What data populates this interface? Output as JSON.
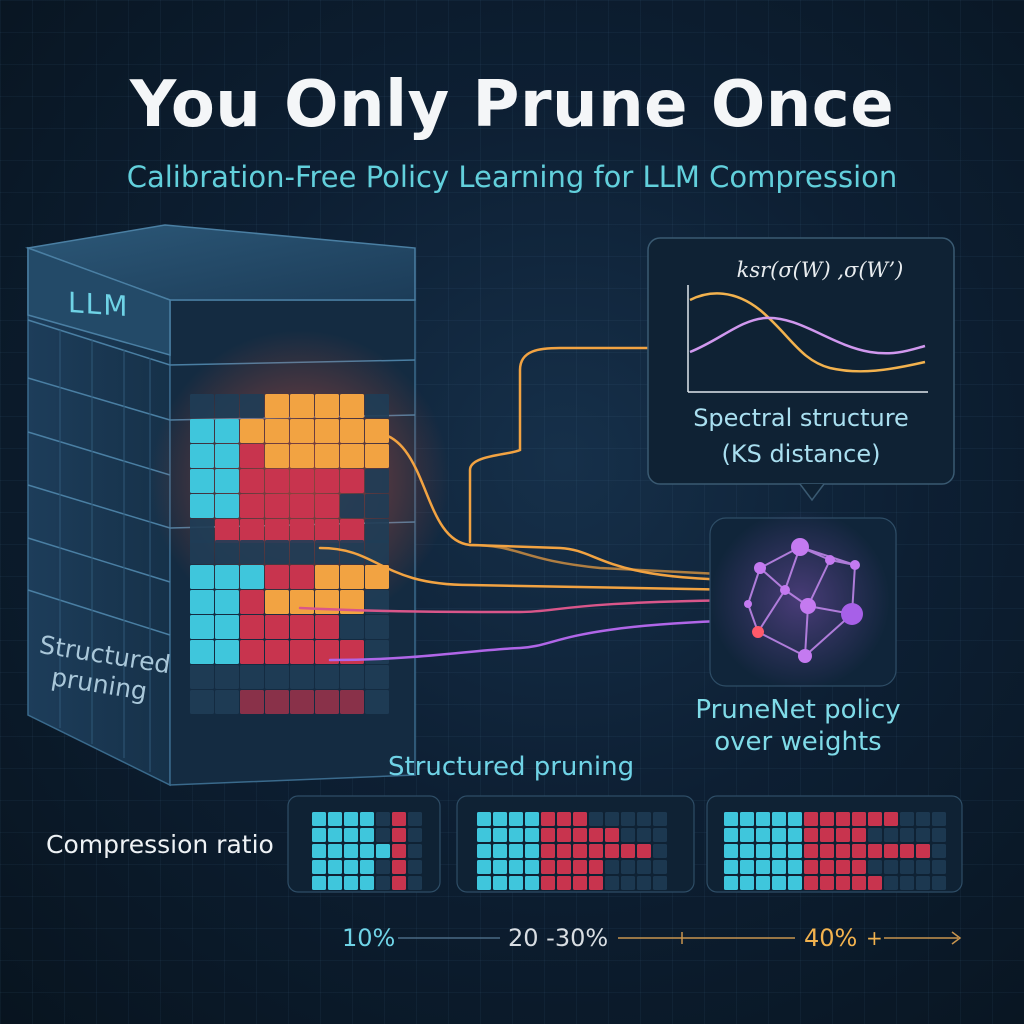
{
  "title": "You Only Prune Once",
  "subtitle": "Calibration-Free Policy Learning for LLM Compression",
  "llm_block": {
    "label": "LLM",
    "side_label_line1": "Structured",
    "side_label_line2": "pruning"
  },
  "spectral_panel": {
    "formula": "ksr(σ(W) ,σ(W’)",
    "title": "Spectral structure",
    "subtitle": "(KS distance)"
  },
  "policy": {
    "line1": "PruneNet policy",
    "line2": "over weights"
  },
  "structured_pruning_header": "Structured pruning",
  "compression_ratio_label": "Compression ratio",
  "ratio_scale": {
    "ticks": [
      "10%",
      "20 -30%",
      "40%"
    ],
    "plus_marker": "+"
  },
  "colors": {
    "cyan": "#3fc6dc",
    "red": "#c8344e",
    "orange": "#f2a342",
    "purple": "#b066e8",
    "panel_border": "#3a5a72"
  }
}
